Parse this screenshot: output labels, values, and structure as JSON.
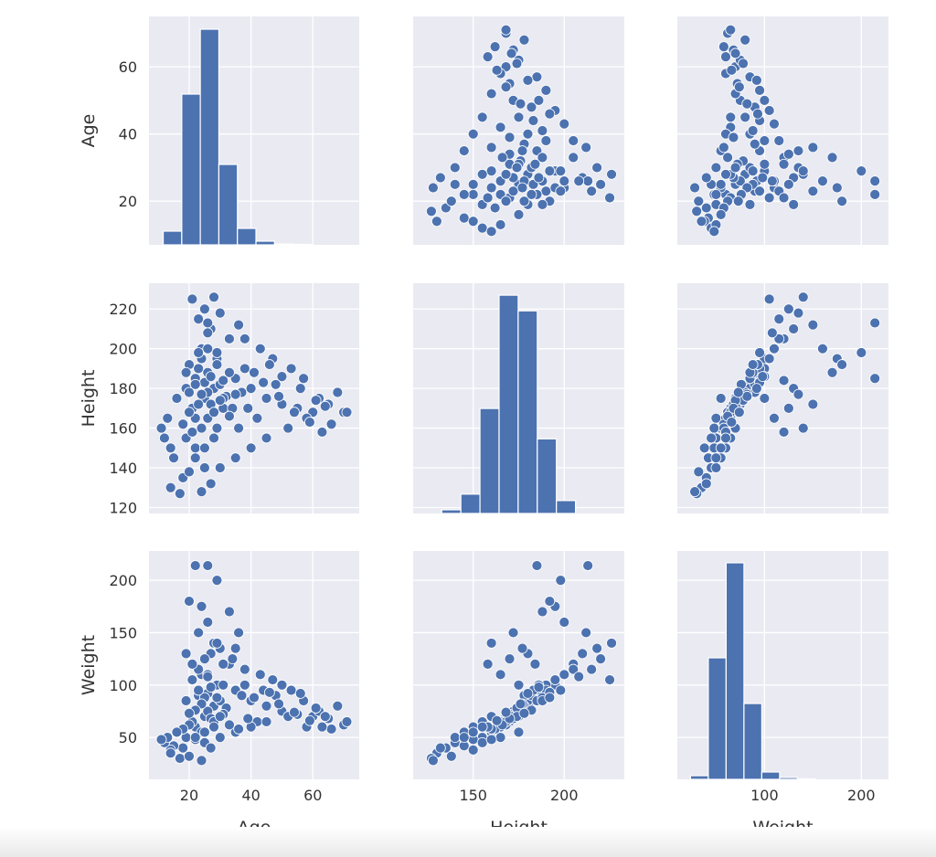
{
  "chart_data": {
    "type": "pairplot",
    "variables": [
      "Age",
      "Height",
      "Weight"
    ],
    "colors": {
      "marker": "#4c72b0",
      "panel_bg": "#eaeaf2",
      "grid": "#ffffff",
      "marker_edge": "#ffffff"
    },
    "grid": true,
    "axes": {
      "Age": {
        "label": "Age",
        "lim": [
          7,
          75
        ],
        "ticks": [
          20,
          40,
          60
        ]
      },
      "Height": {
        "label": "Height",
        "lim": [
          117,
          233
        ],
        "y_ticks": [
          120,
          140,
          160,
          180,
          200,
          220
        ],
        "x_ticks": [
          150,
          200
        ]
      },
      "Weight": {
        "label": "Weight",
        "lim": [
          10,
          228
        ],
        "y_ticks": [
          50,
          100,
          150,
          200
        ],
        "x_ticks": [
          100,
          200
        ]
      }
    },
    "histograms": {
      "Age": {
        "start": 11.6,
        "bin_width": 6.0,
        "counts": [
          15,
          165,
          236,
          88,
          18,
          4,
          1,
          0.5
        ],
        "ylim": [
          0,
          250
        ]
      },
      "Height": {
        "start": 132.7,
        "bin_width": 10.5,
        "counts": [
          4,
          21,
          114,
          237,
          220,
          81,
          14
        ],
        "ylim": [
          0,
          250
        ]
      },
      "Weight": {
        "start": 23.6,
        "bin_width": 18.4,
        "counts": [
          4,
          133,
          237,
          83,
          8,
          2,
          0.5
        ],
        "ylim": [
          0,
          250
        ]
      }
    },
    "records_columns": [
      "Age",
      "Height",
      "Weight"
    ],
    "records": [
      [
        22,
        165,
        60
      ],
      [
        25,
        175,
        70
      ],
      [
        28,
        180,
        80
      ],
      [
        21,
        170,
        65
      ],
      [
        30,
        182,
        85
      ],
      [
        24,
        160,
        55
      ],
      [
        26,
        178,
        75
      ],
      [
        23,
        190,
        90
      ],
      [
        27,
        172,
        68
      ],
      [
        20,
        168,
        62
      ],
      [
        35,
        185,
        95
      ],
      [
        19,
        155,
        50
      ],
      [
        32,
        176,
        78
      ],
      [
        29,
        195,
        100
      ],
      [
        18,
        162,
        58
      ],
      [
        24,
        200,
        110
      ],
      [
        26,
        188,
        92
      ],
      [
        31,
        170,
        72
      ],
      [
        22,
        150,
        48
      ],
      [
        25,
        183,
        88
      ],
      [
        40,
        180,
        85
      ],
      [
        45,
        175,
        80
      ],
      [
        50,
        172,
        75
      ],
      [
        55,
        170,
        72
      ],
      [
        60,
        168,
        70
      ],
      [
        65,
        172,
        68
      ],
      [
        70,
        168,
        62
      ],
      [
        38,
        190,
        100
      ],
      [
        42,
        165,
        65
      ],
      [
        48,
        182,
        90
      ],
      [
        33,
        205,
        120
      ],
      [
        27,
        210,
        130
      ],
      [
        23,
        215,
        115
      ],
      [
        25,
        220,
        125
      ],
      [
        21,
        225,
        105
      ],
      [
        28,
        226,
        140
      ],
      [
        30,
        218,
        135
      ],
      [
        36,
        212,
        150
      ],
      [
        26,
        200,
        160
      ],
      [
        24,
        195,
        175
      ],
      [
        22,
        185,
        214
      ],
      [
        26,
        213,
        214
      ],
      [
        29,
        198,
        200
      ],
      [
        20,
        192,
        180
      ],
      [
        33,
        188,
        170
      ],
      [
        25,
        140,
        45
      ],
      [
        18,
        135,
        40
      ],
      [
        15,
        145,
        42
      ],
      [
        14,
        150,
        38
      ],
      [
        12,
        155,
        45
      ],
      [
        13,
        165,
        50
      ],
      [
        16,
        175,
        55
      ],
      [
        11,
        160,
        48
      ],
      [
        14,
        130,
        35
      ],
      [
        17,
        127,
        30
      ],
      [
        20,
        138,
        32
      ],
      [
        24,
        128,
        28
      ],
      [
        27,
        132,
        40
      ],
      [
        30,
        140,
        50
      ],
      [
        35,
        145,
        55
      ],
      [
        40,
        150,
        60
      ],
      [
        45,
        155,
        65
      ],
      [
        52,
        160,
        70
      ],
      [
        58,
        165,
        60
      ],
      [
        62,
        175,
        75
      ],
      [
        68,
        178,
        80
      ],
      [
        71,
        168,
        65
      ],
      [
        66,
        162,
        58
      ],
      [
        57,
        185,
        85
      ],
      [
        53,
        190,
        95
      ],
      [
        47,
        195,
        105
      ],
      [
        43,
        200,
        110
      ],
      [
        38,
        205,
        115
      ],
      [
        34,
        170,
        125
      ],
      [
        29,
        160,
        140
      ],
      [
        23,
        172,
        150
      ],
      [
        19,
        180,
        130
      ],
      [
        21,
        158,
        120
      ],
      [
        26,
        165,
        110
      ],
      [
        31,
        175,
        100
      ],
      [
        37,
        178,
        90
      ],
      [
        44,
        183,
        95
      ],
      [
        50,
        186,
        100
      ],
      [
        56,
        180,
        92
      ],
      [
        61,
        174,
        78
      ],
      [
        64,
        171,
        70
      ],
      [
        28,
        168,
        65
      ],
      [
        24,
        177,
        82
      ],
      [
        22,
        182,
        76
      ],
      [
        27,
        186,
        98
      ],
      [
        30,
        174,
        70
      ],
      [
        33,
        166,
        62
      ],
      [
        36,
        160,
        58
      ],
      [
        39,
        170,
        68
      ],
      [
        41,
        188,
        88
      ],
      [
        46,
        192,
        93
      ],
      [
        49,
        176,
        82
      ],
      [
        54,
        168,
        74
      ],
      [
        59,
        163,
        66
      ],
      [
        63,
        158,
        60
      ],
      [
        20,
        178,
        73
      ],
      [
        19,
        188,
        85
      ],
      [
        23,
        198,
        95
      ],
      [
        26,
        208,
        108
      ],
      [
        29,
        192,
        88
      ],
      [
        31,
        184,
        120
      ],
      [
        35,
        177,
        135
      ],
      [
        25,
        150,
        55
      ],
      [
        22,
        145,
        50
      ],
      [
        28,
        155,
        60
      ]
    ]
  }
}
